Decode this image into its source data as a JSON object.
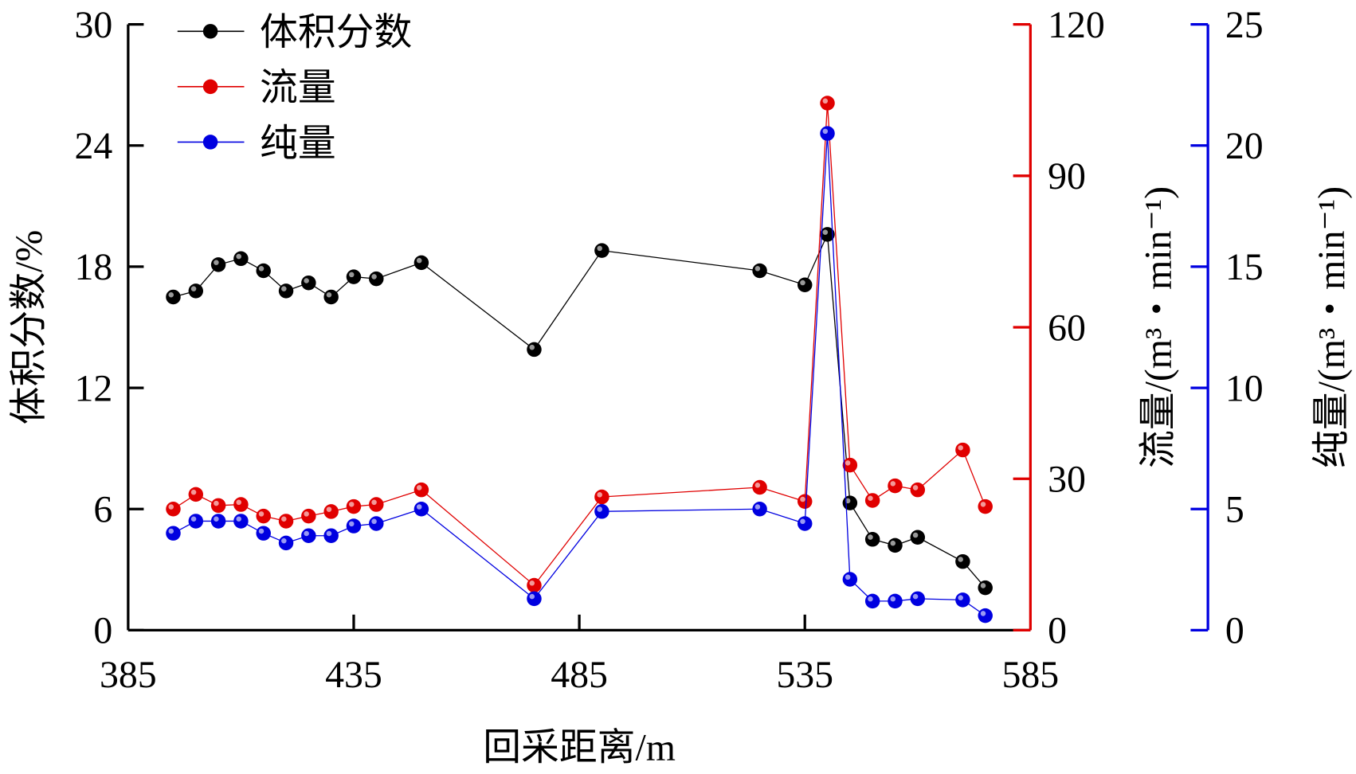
{
  "chart_data": {
    "type": "line",
    "xlabel": "回采距离/m",
    "xlim": [
      385,
      585
    ],
    "xticks": [
      385,
      435,
      485,
      535,
      585
    ],
    "x": [
      395,
      400,
      405,
      410,
      415,
      420,
      425,
      430,
      435,
      440,
      450,
      475,
      490,
      525,
      535,
      540,
      545,
      550,
      555,
      560,
      570,
      575
    ],
    "axes": [
      {
        "id": "left",
        "label": "体积分数/%",
        "ylim": [
          0,
          30
        ],
        "ticks": [
          0,
          6,
          12,
          18,
          24,
          30
        ],
        "color": "#000000"
      },
      {
        "id": "right1",
        "label": "流量/(m³・min⁻¹)",
        "ylim": [
          0,
          120
        ],
        "ticks": [
          0,
          30,
          60,
          90,
          120
        ],
        "color": "#e00000"
      },
      {
        "id": "right2",
        "label": "纯量/(m³・min⁻¹)",
        "ylim": [
          0,
          25
        ],
        "ticks": [
          0,
          5,
          10,
          15,
          20,
          25
        ],
        "color": "#0000e0"
      }
    ],
    "series": [
      {
        "name": "体积分数",
        "axis": "left",
        "color": "#000000",
        "values": [
          16.5,
          16.8,
          18.1,
          18.4,
          17.8,
          16.8,
          17.2,
          16.5,
          17.5,
          17.4,
          18.2,
          13.9,
          18.8,
          17.8,
          17.1,
          19.6,
          6.3,
          4.5,
          4.2,
          4.6,
          3.4,
          2.1
        ]
      },
      {
        "name": "流量",
        "axis": "right1",
        "color": "#e00000",
        "values": [
          24.0,
          26.9,
          24.7,
          24.9,
          22.6,
          21.6,
          22.6,
          23.5,
          24.5,
          24.9,
          27.8,
          8.9,
          26.4,
          28.3,
          25.5,
          104.4,
          32.7,
          25.7,
          28.6,
          27.8,
          35.7,
          24.5
        ]
      },
      {
        "name": "纯量",
        "axis": "right2",
        "color": "#0000e0",
        "values": [
          4.0,
          4.5,
          4.5,
          4.5,
          4.0,
          3.6,
          3.9,
          3.9,
          4.3,
          4.4,
          5.0,
          1.3,
          4.9,
          5.0,
          4.4,
          20.5,
          2.1,
          1.2,
          1.2,
          1.3,
          1.25,
          0.6
        ]
      }
    ],
    "legend": "top-left",
    "grid": false
  }
}
